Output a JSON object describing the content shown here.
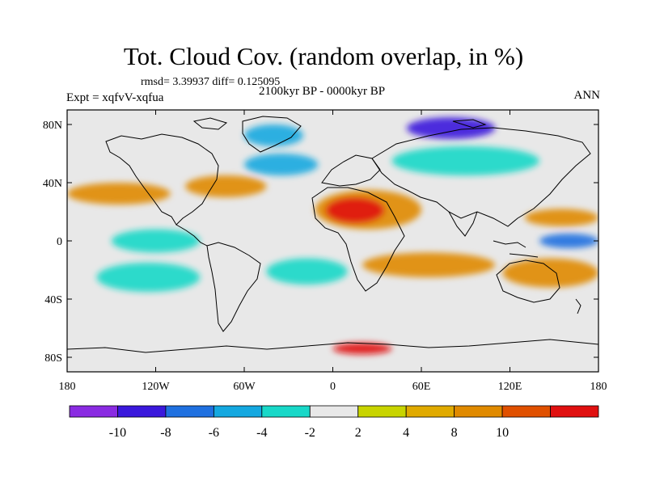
{
  "title": "Tot. Cloud Cov. (random overlap, in %)",
  "stats": "rmsd= 3.39937 diff= 0.125095",
  "period": "2100kyr BP - 0000kyr BP",
  "experiment": "Expt = xqfvV-xqfua",
  "season": "ANN",
  "map": {
    "projection": "cylindrical equidistant",
    "lon_range": [
      -180,
      180
    ],
    "lat_range": [
      -90,
      90
    ],
    "lat_ticks": [
      {
        "value": 80,
        "label": "80N"
      },
      {
        "value": 40,
        "label": "40N"
      },
      {
        "value": 0,
        "label": "0"
      },
      {
        "value": -40,
        "label": "40S"
      },
      {
        "value": -80,
        "label": "80S"
      }
    ],
    "lon_ticks": [
      {
        "value": -180,
        "label": "180"
      },
      {
        "value": -120,
        "label": "120W"
      },
      {
        "value": -60,
        "label": "60W"
      },
      {
        "value": 0,
        "label": "0"
      },
      {
        "value": 60,
        "label": "60E"
      },
      {
        "value": 120,
        "label": "120E"
      },
      {
        "value": 180,
        "label": "180"
      }
    ],
    "anomaly_regions": [
      {
        "name": "north-africa-arabia",
        "lon": [
          -12,
          60
        ],
        "lat": [
          8,
          35
        ],
        "level": 6
      },
      {
        "name": "sahara-core",
        "lon": [
          -5,
          35
        ],
        "lat": [
          12,
          30
        ],
        "level": 10
      },
      {
        "name": "mid-atlantic",
        "lon": [
          -100,
          -45
        ],
        "lat": [
          30,
          45
        ],
        "level": 6
      },
      {
        "name": "pacific-band",
        "lon": [
          -180,
          -110
        ],
        "lat": [
          25,
          40
        ],
        "level": 6
      },
      {
        "name": "indian-ocean-south",
        "lon": [
          20,
          110
        ],
        "lat": [
          -25,
          -8
        ],
        "level": 6
      },
      {
        "name": "australia",
        "lon": [
          115,
          180
        ],
        "lat": [
          -32,
          -12
        ],
        "level": 6
      },
      {
        "name": "west-pacific",
        "lon": [
          130,
          180
        ],
        "lat": [
          10,
          22
        ],
        "level": 6
      },
      {
        "name": "antarctic-peak",
        "lon": [
          0,
          40
        ],
        "lat": [
          -78,
          -70
        ],
        "level": 10
      },
      {
        "name": "arctic-russia",
        "lon": [
          50,
          110
        ],
        "lat": [
          70,
          85
        ],
        "level": -9
      },
      {
        "name": "greenland",
        "lon": [
          -60,
          -20
        ],
        "lat": [
          65,
          80
        ],
        "level": -5
      },
      {
        "name": "south-pacific",
        "lon": [
          -160,
          -90
        ],
        "lat": [
          -35,
          -15
        ],
        "level": -3
      },
      {
        "name": "south-atlantic",
        "lon": [
          -45,
          10
        ],
        "lat": [
          -30,
          -12
        ],
        "level": -3
      },
      {
        "name": "east-pacific-eq",
        "lon": [
          -150,
          -90
        ],
        "lat": [
          -8,
          8
        ],
        "level": -3
      },
      {
        "name": "north-atlantic",
        "lon": [
          -60,
          -10
        ],
        "lat": [
          45,
          60
        ],
        "level": -5
      },
      {
        "name": "siberia",
        "lon": [
          40,
          140
        ],
        "lat": [
          45,
          65
        ],
        "level": -3
      },
      {
        "name": "nw-pacific-eq",
        "lon": [
          140,
          180
        ],
        "lat": [
          -5,
          5
        ],
        "level": -7
      }
    ]
  },
  "colorbar": {
    "colors": [
      "#8a2be2",
      "#3a18dc",
      "#1f70e0",
      "#14a8e0",
      "#18d8c8",
      "#e8e8e8",
      "#c8d400",
      "#e0aa00",
      "#e08a00",
      "#e05000",
      "#e01010"
    ],
    "labels": [
      "-10",
      "-8",
      "-6",
      "-4",
      "-2",
      "2",
      "4",
      "8",
      "10"
    ]
  }
}
